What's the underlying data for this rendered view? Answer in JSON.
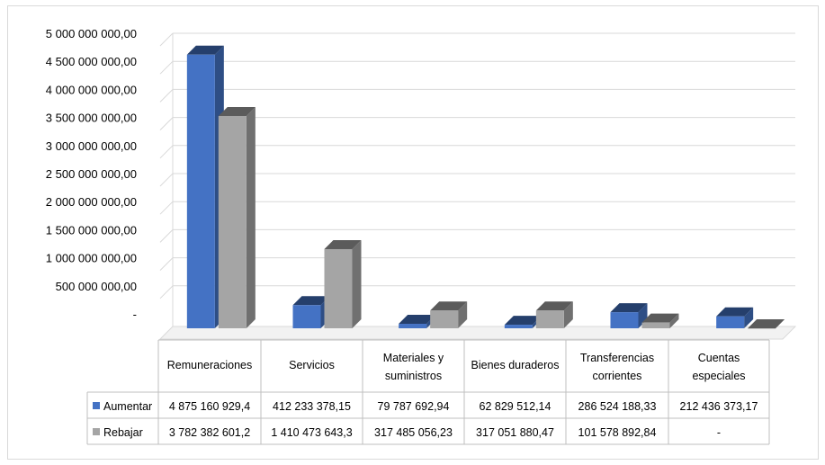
{
  "chart_data": {
    "type": "bar",
    "title": "",
    "xlabel": "",
    "ylabel": "",
    "ylim": [
      0,
      5000000000
    ],
    "y_ticks": [
      "-",
      "500 000 000,00",
      "1 000 000 000,00",
      "1 500 000 000,00",
      "2 000 000 000,00",
      "2 500 000 000,00",
      "3 000 000 000,00",
      "3 500 000 000,00",
      "4 000 000 000,00",
      "4 500 000 000,00",
      "5 000 000 000,00"
    ],
    "categories": [
      [
        "Remuneraciones"
      ],
      [
        "Servicios"
      ],
      [
        "Materiales y",
        "suministros"
      ],
      [
        "Bienes duraderos"
      ],
      [
        "Transferencias",
        "corrientes"
      ],
      [
        "Cuentas",
        "especiales"
      ]
    ],
    "series": [
      {
        "name": "Aumentar",
        "color": "#4472c4",
        "values": [
          4875160929.4,
          412233378.15,
          79787692.94,
          62829512.14,
          286524188.33,
          212436373.17
        ],
        "labels": [
          "4 875 160 929,4",
          "412 233 378,15",
          "79 787 692,94",
          "62 829 512,14",
          "286 524 188,33",
          "212 436 373,17"
        ]
      },
      {
        "name": "Rebajar",
        "color": "#a5a5a5",
        "values": [
          3782382601.2,
          1410473643.3,
          317485056.23,
          317051880.47,
          101578892.84,
          0
        ],
        "labels": [
          "3 782 382 601,2",
          "1 410 473 643,3",
          "317 485 056,23",
          "317 051 880,47",
          "101 578 892,84",
          "-"
        ]
      }
    ],
    "grid": true,
    "legend": "data-table",
    "style": "3d-column"
  }
}
